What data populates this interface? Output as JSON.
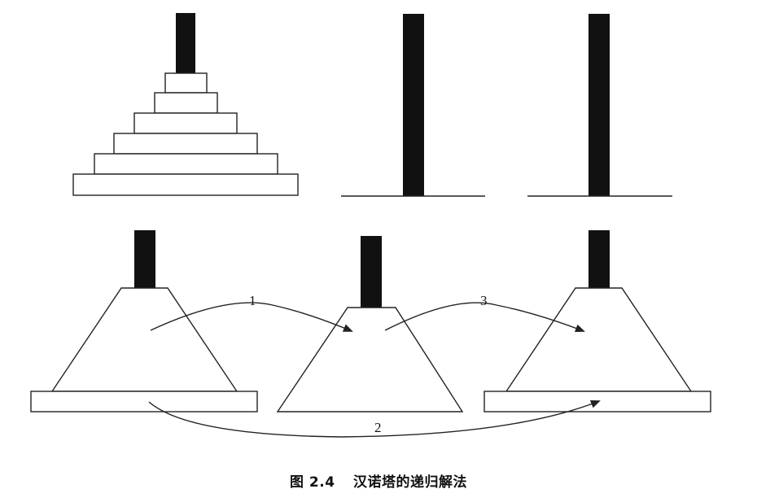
{
  "caption": {
    "figure_number": "图 2.4",
    "title": "汉诺塔的递归解法"
  },
  "steps": {
    "step1": "1",
    "step2": "2",
    "step3": "3"
  },
  "colors": {
    "peg": "#111111",
    "outline": "#222222",
    "background": "#ffffff"
  }
}
